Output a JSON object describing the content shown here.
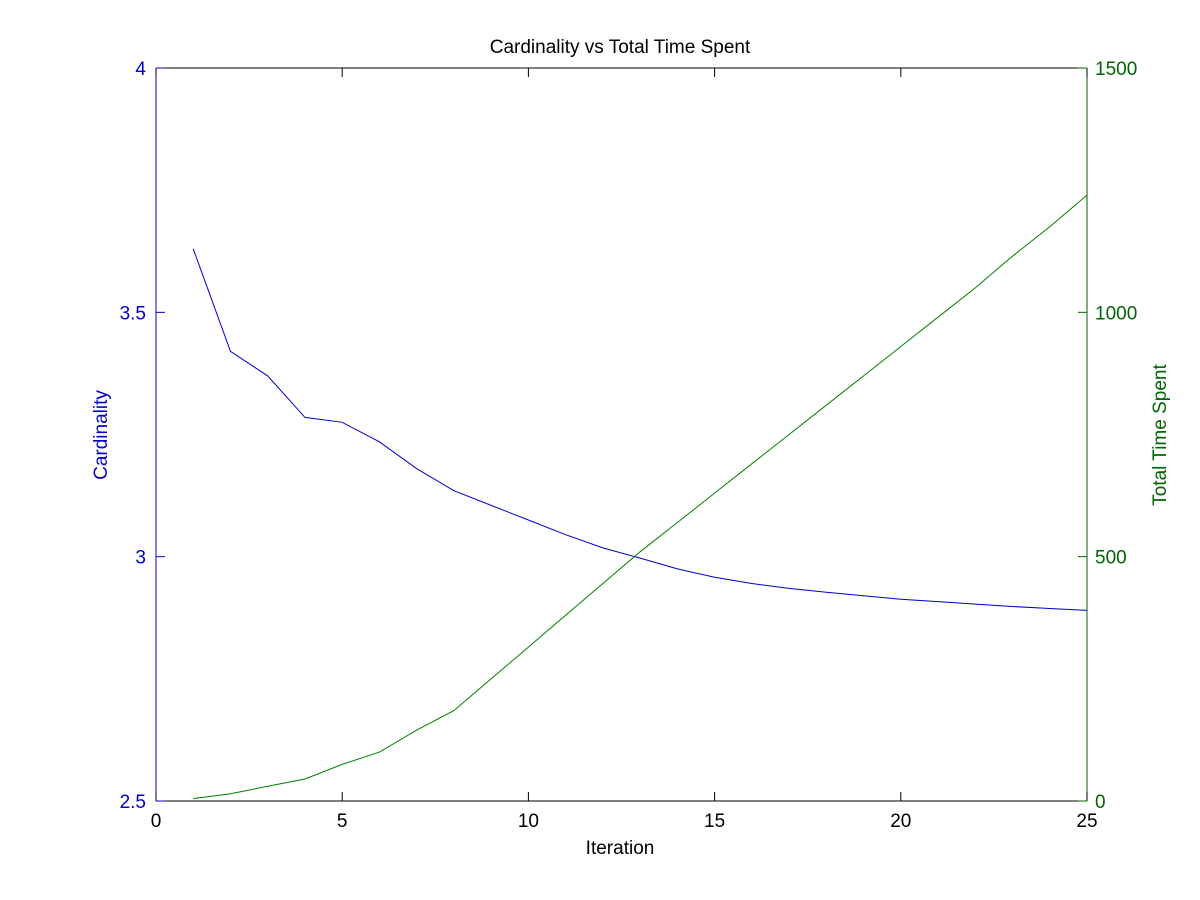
{
  "chart_data": {
    "type": "line",
    "title": "Cardinality vs Total Time Spent",
    "xlabel": "Iteration",
    "ylabel": "Cardinality",
    "y2label": "Total Time Spent",
    "xlim": [
      0,
      25
    ],
    "ylim": [
      2.5,
      4
    ],
    "y2lim": [
      0,
      1500
    ],
    "xticks": [
      "0",
      "5",
      "10",
      "15",
      "20",
      "25"
    ],
    "yticks": [
      "2.5",
      "3",
      "3.5",
      "4"
    ],
    "y2ticks": [
      "0",
      "500",
      "1000",
      "1500"
    ],
    "grid": false,
    "colors": {
      "left_axis": "#0000cc",
      "right_axis": "#006400",
      "cardinality": "#0000cc",
      "time": "#007f00",
      "frame": "#000000"
    },
    "series": [
      {
        "axis": "left",
        "x": [
          1,
          2,
          3,
          4,
          5,
          6,
          7,
          8,
          9,
          10,
          11,
          12,
          13,
          14,
          15,
          16,
          17,
          18,
          19,
          20,
          21,
          22,
          23,
          24,
          25
        ],
        "values": [
          3.63,
          3.42,
          3.37,
          3.285,
          3.275,
          3.235,
          3.18,
          3.135,
          3.105,
          3.075,
          3.045,
          3.018,
          2.997,
          2.975,
          2.958,
          2.945,
          2.935,
          2.927,
          2.92,
          2.913,
          2.908,
          2.903,
          2.898,
          2.894,
          2.89
        ]
      },
      {
        "axis": "right",
        "x": [
          1,
          2,
          3,
          4,
          5,
          6,
          7,
          8,
          9,
          10,
          11,
          12,
          13,
          14,
          15,
          16,
          17,
          18,
          19,
          20,
          21,
          22,
          23,
          24,
          25
        ],
        "values": [
          5,
          15,
          30,
          45,
          75,
          100,
          145,
          185,
          250,
          315,
          380,
          445,
          510,
          570,
          630,
          690,
          750,
          810,
          870,
          930,
          990,
          1050,
          1115,
          1175,
          1240
        ]
      }
    ]
  }
}
